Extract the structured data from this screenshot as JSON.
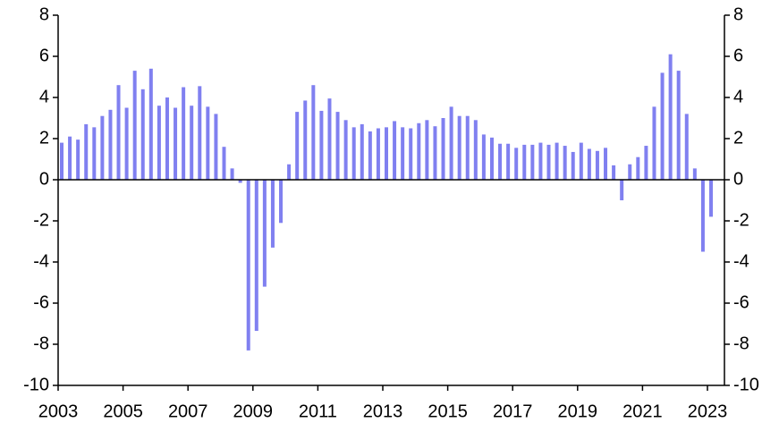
{
  "chart_data": {
    "type": "bar",
    "categories": [
      "2003",
      null,
      null,
      null,
      null,
      null,
      null,
      null,
      "2005",
      null,
      null,
      null,
      null,
      null,
      null,
      null,
      "2007",
      null,
      null,
      null,
      null,
      null,
      null,
      null,
      "2009",
      null,
      null,
      null,
      null,
      null,
      null,
      null,
      "2011",
      null,
      null,
      null,
      null,
      null,
      null,
      null,
      "2013",
      null,
      null,
      null,
      null,
      null,
      null,
      null,
      "2015",
      null,
      null,
      null,
      null,
      null,
      null,
      null,
      "2017",
      null,
      null,
      null,
      null,
      null,
      null,
      null,
      "2019",
      null,
      null,
      null,
      null,
      null,
      null,
      null,
      "2021",
      null,
      null,
      null,
      null,
      null,
      null,
      null,
      "2023"
    ],
    "values": [
      1.8,
      2.1,
      1.95,
      2.7,
      2.55,
      3.1,
      3.4,
      4.6,
      3.5,
      5.3,
      4.4,
      5.4,
      3.6,
      4.0,
      3.5,
      4.5,
      3.6,
      4.55,
      3.55,
      3.2,
      1.6,
      0.55,
      -0.15,
      -8.3,
      -7.35,
      -5.2,
      -3.3,
      -2.1,
      0.75,
      3.3,
      3.85,
      4.6,
      3.35,
      3.95,
      3.3,
      2.9,
      2.55,
      2.7,
      2.35,
      2.5,
      2.55,
      2.85,
      2.55,
      2.5,
      2.75,
      2.9,
      2.6,
      3.0,
      3.55,
      3.1,
      3.1,
      2.9,
      2.2,
      2.05,
      1.75,
      1.75,
      1.55,
      1.7,
      1.7,
      1.8,
      1.7,
      1.8,
      1.65,
      1.35,
      1.8,
      1.5,
      1.4,
      1.55,
      0.7,
      -1.0,
      0.75,
      1.1,
      1.65,
      3.55,
      5.2,
      6.1,
      5.3,
      3.2,
      0.55,
      -3.5,
      -1.8
    ],
    "color": "#8080f0",
    "ylim": [
      -10,
      8
    ],
    "yticks": [
      -10,
      -8,
      -6,
      -4,
      -2,
      0,
      2,
      4,
      6,
      8
    ],
    "y2lim": [
      -10,
      8
    ],
    "y2ticks": [
      -10,
      -8,
      -6,
      -4,
      -2,
      0,
      2,
      4,
      6,
      8
    ]
  }
}
